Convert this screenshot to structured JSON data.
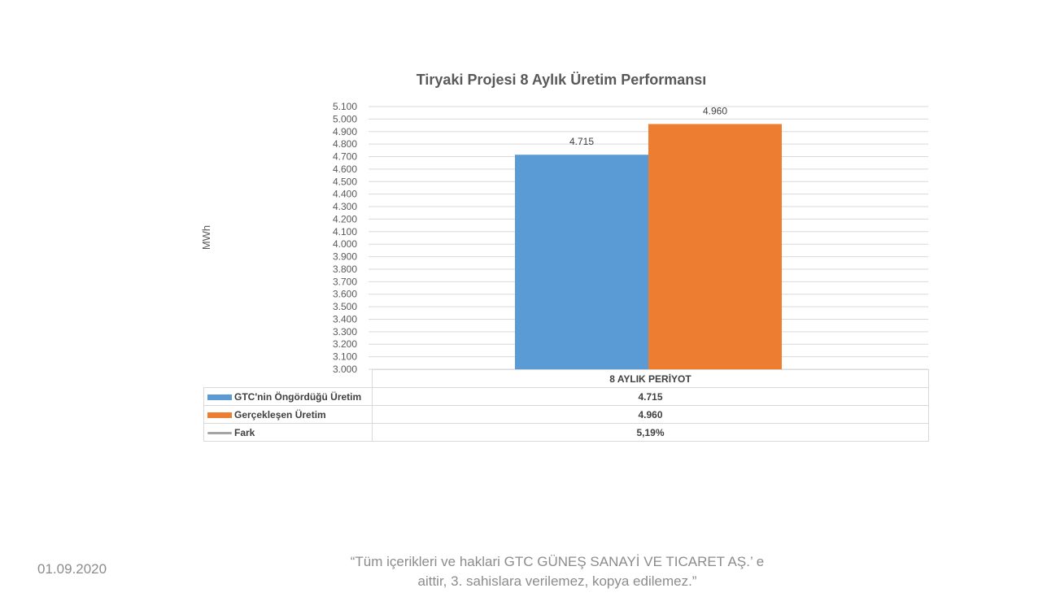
{
  "chart_data": {
    "type": "bar",
    "title": "Tiryaki Projesi 8 Aylık Üretim Performansı",
    "ylabel": "MWh",
    "categories": [
      "8 AYLIK PERİYOT"
    ],
    "series": [
      {
        "name": "GTC'nin Öngördüğü Üretim",
        "values": [
          4715
        ],
        "label": "4.715",
        "color": "#5b9bd5"
      },
      {
        "name": "Gerçekleşen Üretim",
        "values": [
          4960
        ],
        "label": "4.960",
        "color": "#ed7d31"
      }
    ],
    "ylim": [
      3000,
      5100
    ],
    "ytick_step": 100,
    "ytick_labels": [
      "3.000",
      "3.100",
      "3.200",
      "3.300",
      "3.400",
      "3.500",
      "3.600",
      "3.700",
      "3.800",
      "3.900",
      "4.000",
      "4.100",
      "4.200",
      "4.300",
      "4.400",
      "4.500",
      "4.600",
      "4.700",
      "4.800",
      "4.900",
      "5.000",
      "5.100"
    ],
    "grid": true,
    "table": {
      "header": "8 AYLIK PERİYOT",
      "rows": [
        {
          "label": "GTC'nin Öngördüğü Üretim",
          "value": "4.715",
          "key": "bar",
          "color": "#5b9bd5"
        },
        {
          "label": "Gerçekleşen Üretim",
          "value": "4.960",
          "key": "bar",
          "color": "#ed7d31"
        },
        {
          "label": "Fark",
          "value": "5,19%",
          "key": "line",
          "color": "#a5a5a5"
        }
      ]
    }
  },
  "footer": {
    "date": "01.09.2020",
    "note_line1": "“Tüm içerikleri ve haklari GTC GÜNEŞ SANAYİ VE TICARET AŞ.’ e",
    "note_line2": "aittir, 3. sahislara verilemez, kopya edilemez.”"
  }
}
